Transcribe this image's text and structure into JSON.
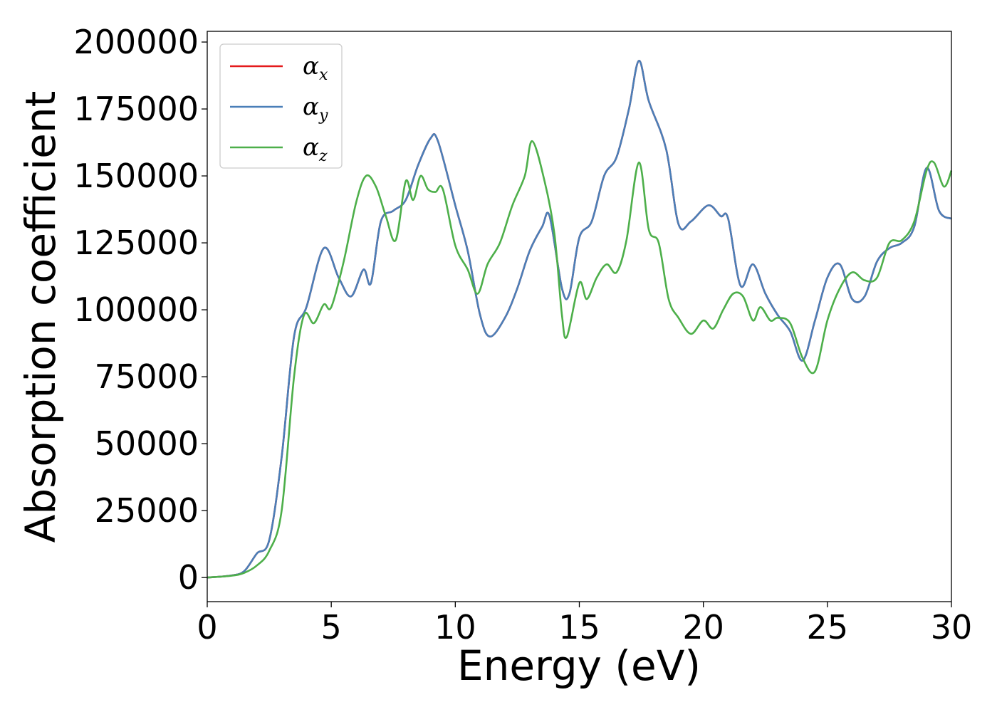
{
  "chart_data": {
    "type": "line",
    "title": "",
    "xlabel": "Energy (eV)",
    "ylabel": "Absorption coefficient",
    "xlim": [
      0,
      30
    ],
    "ylim": [
      -9000,
      204000
    ],
    "x_ticks": [
      0,
      5,
      10,
      15,
      20,
      25,
      30
    ],
    "x_tick_labels": [
      "0",
      "5",
      "10",
      "15",
      "20",
      "25",
      "30"
    ],
    "y_ticks": [
      0,
      25000,
      50000,
      75000,
      100000,
      125000,
      150000,
      175000,
      200000
    ],
    "y_tick_labels": [
      "0",
      "25000",
      "50000",
      "75000",
      "100000",
      "125000",
      "150000",
      "175000",
      "200000"
    ],
    "grid": false,
    "legend_position": "top-left",
    "series": [
      {
        "name": "αx",
        "symbol": "α",
        "subscript": "x",
        "color": "#e41a1c",
        "x": [
          0,
          1,
          1.5,
          2,
          2.5,
          3,
          3.5,
          4,
          4.7,
          5.3,
          5.8,
          6.3,
          6.6,
          7,
          7.5,
          8,
          8.5,
          9,
          9.3,
          10,
          10.5,
          11,
          11.4,
          12,
          12.5,
          13,
          13.5,
          13.8,
          14.3,
          14.6,
          15,
          15.5,
          16,
          16.5,
          17,
          17.4,
          17.8,
          18.5,
          19,
          19.5,
          20.2,
          20.7,
          21,
          21.5,
          22,
          22.5,
          23,
          23.5,
          24,
          24.5,
          25,
          25.5,
          26,
          26.5,
          27,
          27.5,
          28,
          28.5,
          29,
          29.5,
          30
        ],
        "y": [
          0,
          800,
          2500,
          9000,
          14000,
          45000,
          90000,
          101000,
          123000,
          112000,
          105000,
          115000,
          110000,
          133000,
          137000,
          141000,
          154000,
          164000,
          163000,
          139000,
          122000,
          98000,
          90000,
          97000,
          108000,
          122000,
          131000,
          135000,
          108000,
          106000,
          127000,
          133000,
          150000,
          157000,
          175000,
          193000,
          178000,
          160000,
          132000,
          133000,
          139000,
          135000,
          134000,
          109000,
          117000,
          106000,
          98000,
          92000,
          81000,
          96000,
          112000,
          117000,
          104000,
          105000,
          118000,
          123000,
          125000,
          131000,
          153000,
          137000,
          134000
        ]
      },
      {
        "name": "αy",
        "symbol": "α",
        "subscript": "y",
        "color": "#4a7fb8",
        "x": [
          0,
          1,
          1.5,
          2,
          2.5,
          3,
          3.5,
          4,
          4.7,
          5.3,
          5.8,
          6.3,
          6.6,
          7,
          7.5,
          8,
          8.5,
          9,
          9.3,
          10,
          10.5,
          11,
          11.4,
          12,
          12.5,
          13,
          13.5,
          13.8,
          14.3,
          14.6,
          15,
          15.5,
          16,
          16.5,
          17,
          17.4,
          17.8,
          18.5,
          19,
          19.5,
          20.2,
          20.7,
          21,
          21.5,
          22,
          22.5,
          23,
          23.5,
          24,
          24.5,
          25,
          25.5,
          26,
          26.5,
          27,
          27.5,
          28,
          28.5,
          29,
          29.5,
          30
        ],
        "y": [
          0,
          800,
          2500,
          9000,
          14000,
          45000,
          90000,
          101000,
          123000,
          112000,
          105000,
          115000,
          110000,
          133000,
          137000,
          141000,
          154000,
          164000,
          163000,
          139000,
          122000,
          98000,
          90000,
          97000,
          108000,
          122000,
          131000,
          135000,
          108000,
          106000,
          127000,
          133000,
          150000,
          157000,
          175000,
          193000,
          178000,
          160000,
          132000,
          133000,
          139000,
          135000,
          134000,
          109000,
          117000,
          106000,
          98000,
          92000,
          81000,
          96000,
          112000,
          117000,
          104000,
          105000,
          118000,
          123000,
          125000,
          131000,
          153000,
          137000,
          134000
        ]
      },
      {
        "name": "αz",
        "symbol": "α",
        "subscript": "z",
        "color": "#4daf4a",
        "x": [
          0,
          1,
          1.5,
          2,
          2.5,
          3,
          3.5,
          3.9,
          4.3,
          4.7,
          5,
          5.5,
          6,
          6.4,
          6.8,
          7.2,
          7.6,
          8,
          8.3,
          8.6,
          8.9,
          9.2,
          9.5,
          10,
          10.5,
          10.9,
          11.3,
          11.8,
          12.3,
          12.8,
          13.1,
          13.6,
          14,
          14.3,
          14.5,
          15,
          15.3,
          15.7,
          16.1,
          16.5,
          16.9,
          17.4,
          17.8,
          18.2,
          18.6,
          19,
          19.5,
          20,
          20.4,
          20.8,
          21.2,
          21.6,
          22,
          22.3,
          22.7,
          23,
          23.5,
          24,
          24.5,
          25,
          25.5,
          26,
          26.5,
          27,
          27.5,
          28,
          28.5,
          29,
          29.3,
          29.7,
          30
        ],
        "y": [
          0,
          700,
          1800,
          4500,
          10000,
          25000,
          75000,
          98000,
          95000,
          102000,
          101000,
          118000,
          140000,
          150000,
          146000,
          135000,
          126000,
          148000,
          141000,
          150000,
          145000,
          144000,
          145000,
          124000,
          115000,
          106000,
          117000,
          125000,
          139000,
          150000,
          163000,
          148000,
          128000,
          98000,
          90000,
          110000,
          104000,
          112000,
          117000,
          114000,
          126000,
          155000,
          130000,
          125000,
          104000,
          97000,
          91000,
          96000,
          93000,
          100000,
          106000,
          105000,
          96000,
          101000,
          96000,
          97000,
          95000,
          82000,
          77000,
          96000,
          108000,
          114000,
          111000,
          112000,
          125000,
          126000,
          133000,
          152000,
          155000,
          146000,
          152000
        ]
      }
    ]
  }
}
